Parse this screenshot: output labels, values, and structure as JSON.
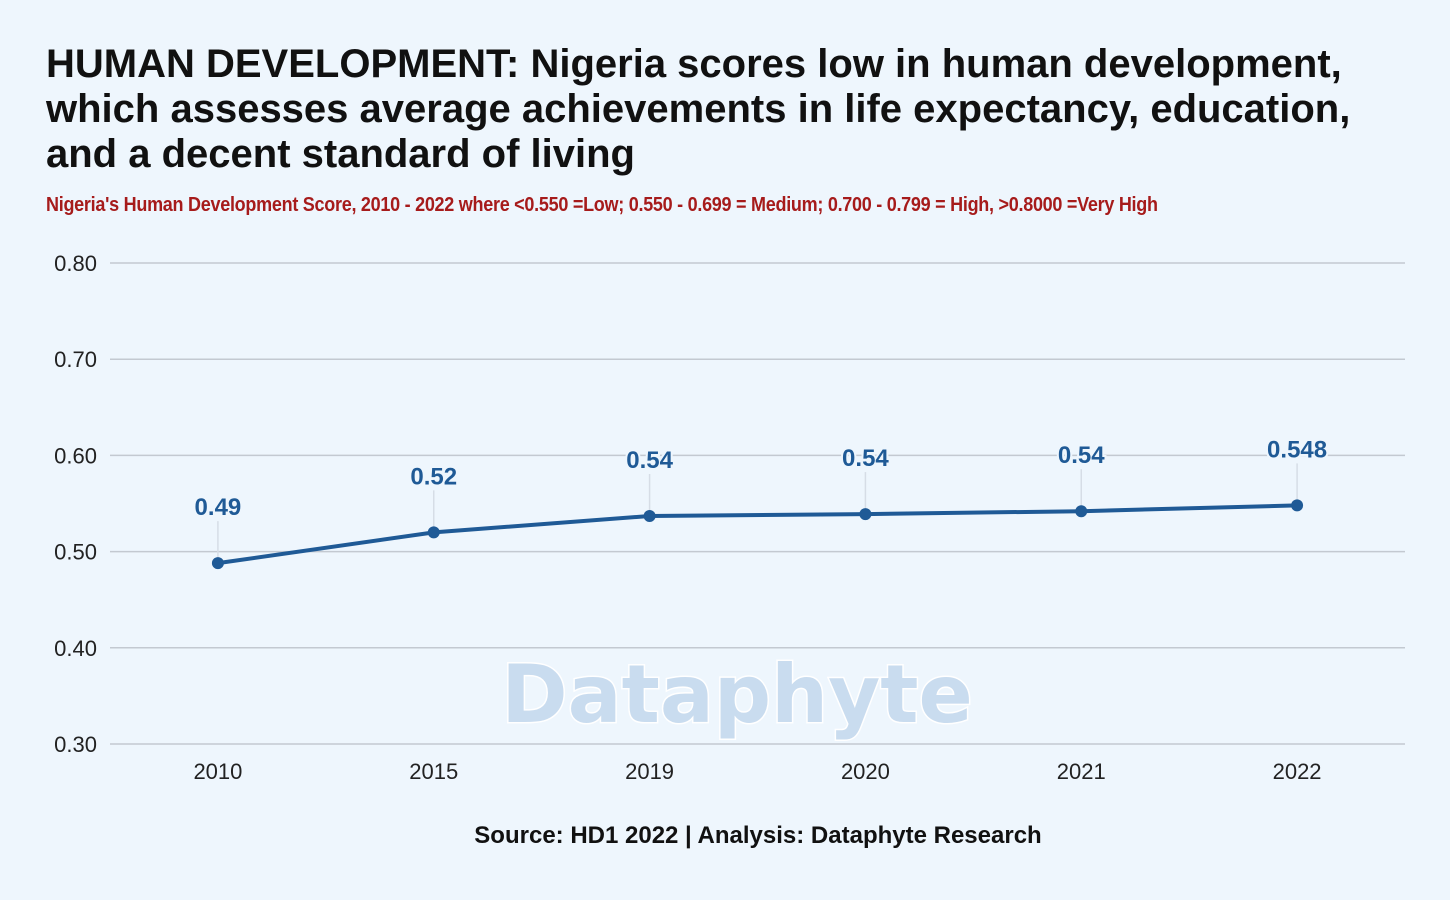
{
  "header": {
    "title": "HUMAN DEVELOPMENT: Nigeria scores low in human development, which assesses average achievements in life expectancy, education, and a decent standard of living",
    "subtitle": "Nigeria's Human Development Score,  2010 - 2022 where <0.550 =Low; 0.550 - 0.699 = Medium; 0.700 - 0.799 = High, >0.8000 =Very High"
  },
  "watermark": "Dataphyte",
  "footer": {
    "source": "Source: HD1 2022 | Analysis: Dataphyte Research"
  },
  "colors": {
    "line": "#1f5a96",
    "label": "#1f5a96",
    "grid": "#c3c9d1",
    "title": "#111111",
    "subtitle": "#a61b1b",
    "watermark": "#c9dcef"
  },
  "chart_data": {
    "type": "line",
    "categories": [
      "2010",
      "2015",
      "2019",
      "2020",
      "2021",
      "2022"
    ],
    "values": [
      0.488,
      0.52,
      0.537,
      0.539,
      0.542,
      0.548
    ],
    "data_labels": [
      "0.49",
      "0.52",
      "0.54",
      "0.54",
      "0.54",
      "0.548"
    ],
    "y_ticks": [
      "0.80",
      "0.70",
      "0.60",
      "0.50",
      "0.40",
      "0.30"
    ],
    "ylim": [
      0.3,
      0.8
    ],
    "grid": true,
    "legend": "none"
  }
}
